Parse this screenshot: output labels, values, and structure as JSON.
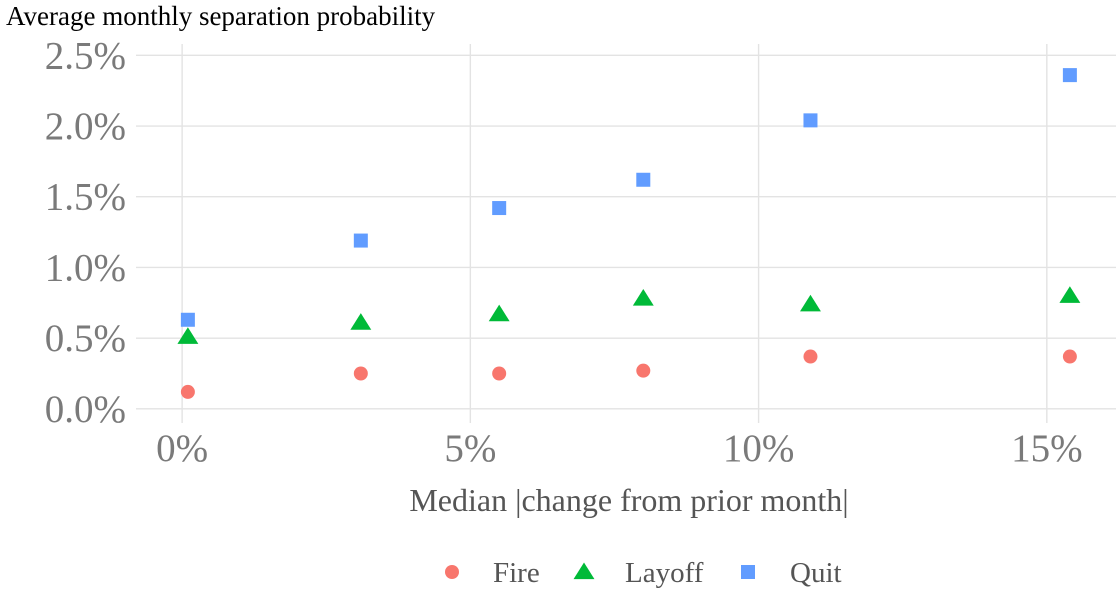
{
  "chart_data": {
    "type": "scatter",
    "title": "Average monthly separation probability",
    "xlabel": "Median |change from prior month|",
    "ylabel": "",
    "xlim": [
      -0.8,
      16.2
    ],
    "ylim": [
      -0.1,
      2.58
    ],
    "x_ticks": [
      0,
      5,
      10,
      15
    ],
    "x_tick_labels": [
      "0%",
      "5%",
      "10%",
      "15%"
    ],
    "y_ticks": [
      0.0,
      0.5,
      1.0,
      1.5,
      2.0,
      2.5
    ],
    "y_tick_labels": [
      "0.0%",
      "0.5%",
      "1.0%",
      "1.5%",
      "2.0%",
      "2.5%"
    ],
    "grid": true,
    "legend_position": "bottom",
    "series": [
      {
        "name": "Fire",
        "marker": "circle",
        "color": "#F8766D",
        "x": [
          0.1,
          3.1,
          5.5,
          8.0,
          10.9,
          15.4
        ],
        "y": [
          0.12,
          0.25,
          0.25,
          0.27,
          0.37,
          0.37
        ]
      },
      {
        "name": "Layoff",
        "marker": "triangle",
        "color": "#00BA38",
        "x": [
          0.1,
          3.1,
          5.5,
          8.0,
          10.9,
          15.4
        ],
        "y": [
          0.51,
          0.61,
          0.67,
          0.78,
          0.74,
          0.8
        ]
      },
      {
        "name": "Quit",
        "marker": "square",
        "color": "#619CFF",
        "x": [
          0.1,
          3.1,
          5.5,
          8.0,
          10.9,
          15.4
        ],
        "y": [
          0.63,
          1.19,
          1.42,
          1.62,
          2.04,
          2.36
        ]
      }
    ]
  }
}
